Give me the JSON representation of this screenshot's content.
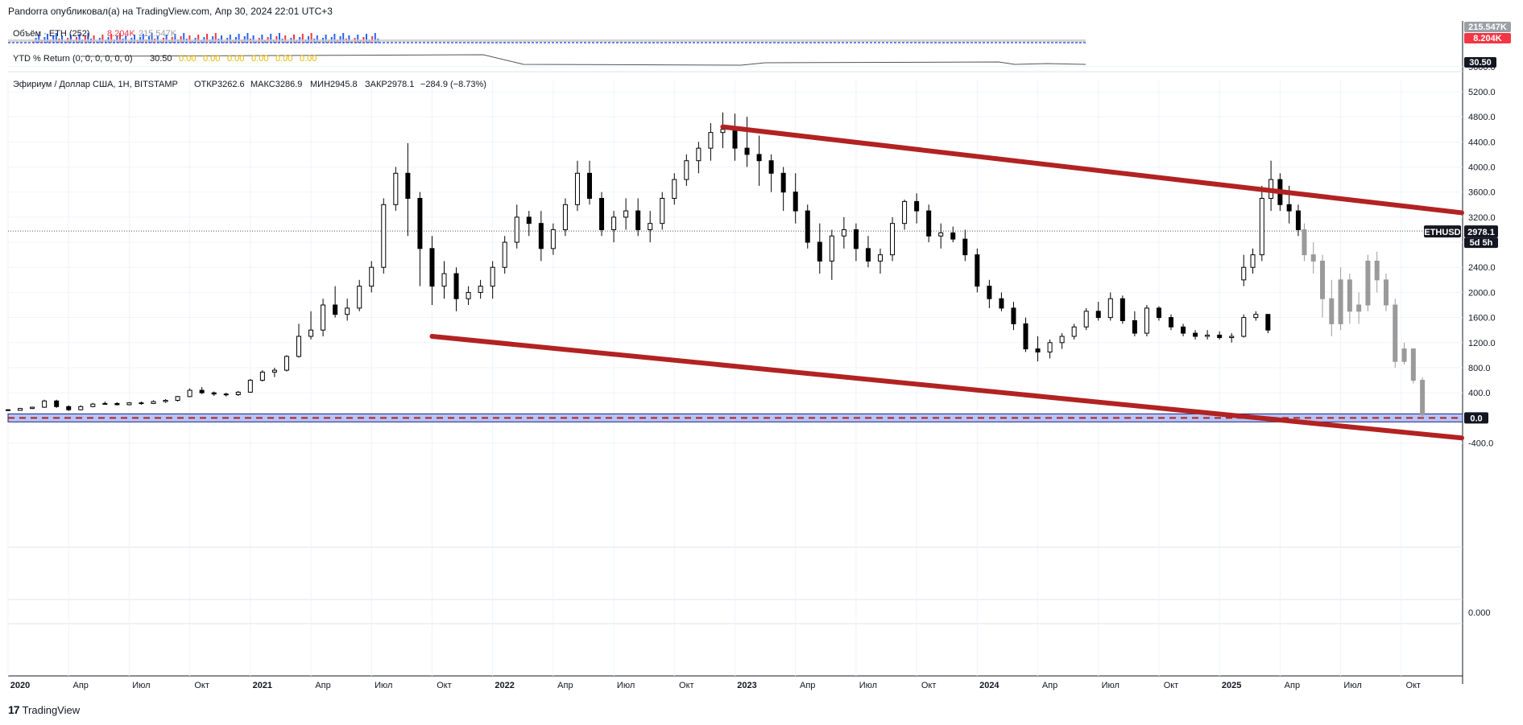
{
  "header": {
    "published": "Pandorra опубликовал(а) на TradingView.com, Апр 30, 2024 22:01 UTC+3"
  },
  "volume_pane": {
    "label": "Объём · ETH (252)",
    "value1": "8.204K",
    "value2": "215.547K",
    "badge_top": "215.547K",
    "badge_bottom": "8.204K",
    "color_up": "#2962ff",
    "color_down": "#f23645"
  },
  "ytd_pane": {
    "label": "YTD % Return (0, 0, 0, 0, 0, 0)",
    "value": "30.50",
    "zeros": [
      "0.00",
      "0.00",
      "0.00",
      "0.00",
      "0.00",
      "0.00"
    ],
    "badge": "30.50",
    "zero_color": "#e6b800"
  },
  "symbol_info": {
    "name": "Эфириум / Доллар США, 1Н, BITSTAMP",
    "open": "ОТКР3262.6",
    "high": "МАКС3286.9",
    "low": "МИН2945.8",
    "close": "ЗАКР2978.1",
    "change": "−284.9 (−8.73%)"
  },
  "price_badge": {
    "ticker": "ETHUSD",
    "price": "2978.1",
    "countdown": "5d 5h"
  },
  "zero_badge": "0.0",
  "bottom_pane_label": "0.000",
  "footer": {
    "brand": "TradingView",
    "brand_mark": "17"
  },
  "colors": {
    "candle_up": "#ffffff",
    "candle_down": "#000000",
    "projection": "#9a9a9a",
    "channel": "#b22222",
    "zero_band": "#b8c4f5"
  },
  "chart_data": {
    "type": "candlestick",
    "y_ticks": [
      "5600.0",
      "5200.0",
      "4800.0",
      "4400.0",
      "4000.0",
      "3600.0",
      "3200.0",
      "2800.0",
      "2400.0",
      "2000.0",
      "1600.0",
      "1200.0",
      "800.0",
      "400.0",
      "0.0",
      "-400.0"
    ],
    "ylim": [
      -650,
      5700
    ],
    "x_ticks": [
      "2020",
      "Апр",
      "Июл",
      "Окт",
      "2021",
      "Апр",
      "Июл",
      "Окт",
      "2022",
      "Апр",
      "Июл",
      "Окт",
      "2023",
      "Апр",
      "Июл",
      "Окт",
      "2024",
      "Апр",
      "Июл",
      "Окт",
      "2025",
      "Апр",
      "Июл",
      "Окт"
    ],
    "x_bold": [
      true,
      false,
      false,
      false,
      true,
      false,
      false,
      false,
      true,
      false,
      false,
      false,
      true,
      false,
      false,
      false,
      true,
      false,
      false,
      false,
      true,
      false,
      false,
      false
    ],
    "xlim": [
      0,
      24
    ],
    "channel_upper": [
      [
        11.8,
        4640
      ],
      [
        24.0,
        3270
      ]
    ],
    "channel_lower": [
      [
        7.0,
        1300
      ],
      [
        24.0,
        -320
      ]
    ],
    "last_price": 2978.1,
    "actual": [
      [
        0.0,
        130,
        130,
        110,
        120
      ],
      [
        0.2,
        120,
        160,
        115,
        150
      ],
      [
        0.4,
        150,
        180,
        140,
        170
      ],
      [
        0.6,
        170,
        290,
        160,
        270
      ],
      [
        0.8,
        270,
        290,
        160,
        180
      ],
      [
        1.0,
        180,
        200,
        110,
        130
      ],
      [
        1.2,
        130,
        200,
        120,
        180
      ],
      [
        1.4,
        180,
        240,
        170,
        220
      ],
      [
        1.6,
        220,
        260,
        210,
        230
      ],
      [
        1.8,
        230,
        250,
        200,
        210
      ],
      [
        2.0,
        210,
        250,
        200,
        240
      ],
      [
        2.2,
        240,
        260,
        210,
        230
      ],
      [
        2.4,
        230,
        280,
        220,
        260
      ],
      [
        2.6,
        260,
        300,
        240,
        280
      ],
      [
        2.8,
        280,
        350,
        260,
        340
      ],
      [
        3.0,
        340,
        470,
        330,
        440
      ],
      [
        3.2,
        440,
        490,
        380,
        400
      ],
      [
        3.4,
        400,
        420,
        350,
        380
      ],
      [
        3.6,
        380,
        400,
        340,
        370
      ],
      [
        3.8,
        370,
        430,
        350,
        410
      ],
      [
        4.0,
        410,
        620,
        400,
        600
      ],
      [
        4.2,
        600,
        760,
        580,
        730
      ],
      [
        4.4,
        730,
        800,
        650,
        760
      ],
      [
        4.6,
        760,
        1000,
        740,
        980
      ],
      [
        4.8,
        980,
        1500,
        960,
        1300
      ],
      [
        5.0,
        1300,
        1700,
        1250,
        1400
      ],
      [
        5.2,
        1400,
        1900,
        1300,
        1800
      ],
      [
        5.4,
        1800,
        2100,
        1600,
        1650
      ],
      [
        5.6,
        1650,
        1900,
        1550,
        1750
      ],
      [
        5.8,
        1750,
        2200,
        1700,
        2100
      ],
      [
        6.0,
        2100,
        2500,
        2000,
        2400
      ],
      [
        6.2,
        2400,
        3500,
        2300,
        3400
      ],
      [
        6.4,
        3400,
        4000,
        3300,
        3900
      ],
      [
        6.6,
        3900,
        4380,
        2900,
        3500
      ],
      [
        6.8,
        3500,
        3600,
        2100,
        2700
      ],
      [
        7.0,
        2700,
        2900,
        1800,
        2100
      ],
      [
        7.2,
        2100,
        2500,
        1900,
        2300
      ],
      [
        7.4,
        2300,
        2400,
        1700,
        1900
      ],
      [
        7.6,
        1900,
        2100,
        1800,
        2000
      ],
      [
        7.8,
        2000,
        2200,
        1900,
        2100
      ],
      [
        8.0,
        2100,
        2500,
        1900,
        2400
      ],
      [
        8.2,
        2400,
        2900,
        2300,
        2800
      ],
      [
        8.4,
        2800,
        3400,
        2700,
        3200
      ],
      [
        8.6,
        3200,
        3300,
        2900,
        3100
      ],
      [
        8.8,
        3100,
        3300,
        2500,
        2700
      ],
      [
        9.0,
        2700,
        3100,
        2600,
        3000
      ],
      [
        9.2,
        3000,
        3500,
        2900,
        3400
      ],
      [
        9.4,
        3400,
        4100,
        3300,
        3900
      ],
      [
        9.6,
        3900,
        4100,
        3400,
        3500
      ],
      [
        9.8,
        3500,
        3600,
        2900,
        3000
      ],
      [
        10.0,
        3000,
        3300,
        2800,
        3200
      ],
      [
        10.2,
        3200,
        3500,
        3000,
        3300
      ],
      [
        10.4,
        3300,
        3500,
        2900,
        3000
      ],
      [
        10.6,
        3000,
        3300,
        2800,
        3100
      ],
      [
        10.8,
        3100,
        3600,
        3000,
        3500
      ],
      [
        11.0,
        3500,
        3900,
        3400,
        3800
      ],
      [
        11.2,
        3800,
        4200,
        3700,
        4100
      ],
      [
        11.4,
        4100,
        4400,
        3900,
        4300
      ],
      [
        11.6,
        4300,
        4700,
        4100,
        4550
      ],
      [
        11.8,
        4550,
        4870,
        4300,
        4600
      ],
      [
        12.0,
        4600,
        4850,
        4100,
        4300
      ],
      [
        12.2,
        4300,
        4800,
        4000,
        4200
      ],
      [
        12.4,
        4200,
        4500,
        3700,
        4100
      ],
      [
        12.6,
        4100,
        4200,
        3600,
        3900
      ],
      [
        12.8,
        3900,
        4000,
        3300,
        3600
      ],
      [
        13.0,
        3600,
        3900,
        3100,
        3300
      ],
      [
        13.2,
        3300,
        3400,
        2700,
        2800
      ],
      [
        13.4,
        2800,
        3100,
        2300,
        2500
      ],
      [
        13.6,
        2500,
        3000,
        2200,
        2900
      ],
      [
        13.8,
        2900,
        3200,
        2700,
        3000
      ],
      [
        14.0,
        3000,
        3100,
        2500,
        2700
      ],
      [
        14.2,
        2700,
        2900,
        2400,
        2500
      ],
      [
        14.4,
        2500,
        2700,
        2300,
        2600
      ],
      [
        14.6,
        2600,
        3200,
        2500,
        3100
      ],
      [
        14.8,
        3100,
        3480,
        3000,
        3450
      ],
      [
        15.0,
        3450,
        3580,
        3100,
        3300
      ],
      [
        15.2,
        3300,
        3400,
        2800,
        2900
      ],
      [
        15.4,
        2900,
        3100,
        2700,
        2950
      ],
      [
        15.6,
        2950,
        3050,
        2800,
        2850
      ],
      [
        15.8,
        2850,
        3000,
        2500,
        2600
      ],
      [
        16.0,
        2600,
        2700,
        2000,
        2100
      ],
      [
        16.2,
        2100,
        2200,
        1750,
        1900
      ],
      [
        16.4,
        1900,
        2000,
        1700,
        1750
      ],
      [
        16.6,
        1750,
        1850,
        1400,
        1500
      ],
      [
        16.8,
        1500,
        1600,
        1050,
        1100
      ],
      [
        17.0,
        1100,
        1300,
        900,
        1050
      ],
      [
        17.2,
        1050,
        1250,
        950,
        1200
      ],
      [
        17.4,
        1200,
        1350,
        1100,
        1300
      ],
      [
        17.6,
        1300,
        1500,
        1250,
        1450
      ],
      [
        17.8,
        1450,
        1750,
        1400,
        1700
      ],
      [
        18.0,
        1700,
        1850,
        1550,
        1600
      ],
      [
        18.2,
        1600,
        2000,
        1550,
        1900
      ],
      [
        18.4,
        1900,
        1950,
        1500,
        1550
      ],
      [
        18.6,
        1550,
        1700,
        1300,
        1350
      ],
      [
        18.8,
        1350,
        1800,
        1300,
        1750
      ]
    ],
    "actual_b": [
      [
        19.0,
        1750,
        1780,
        1550,
        1600
      ],
      [
        19.2,
        1600,
        1650,
        1400,
        1450
      ],
      [
        19.4,
        1450,
        1500,
        1300,
        1350
      ],
      [
        19.6,
        1350,
        1400,
        1250,
        1300
      ],
      [
        19.8,
        1300,
        1400,
        1250,
        1320
      ],
      [
        20.0,
        1320,
        1380,
        1250,
        1280
      ],
      [
        20.2,
        1280,
        1350,
        1200,
        1300
      ],
      [
        20.4,
        1300,
        1650,
        1280,
        1600
      ],
      [
        20.6,
        1600,
        1700,
        1550,
        1650
      ],
      [
        20.8,
        1650,
        1650,
        1350,
        1400
      ]
    ],
    "projection_note": ""
  }
}
